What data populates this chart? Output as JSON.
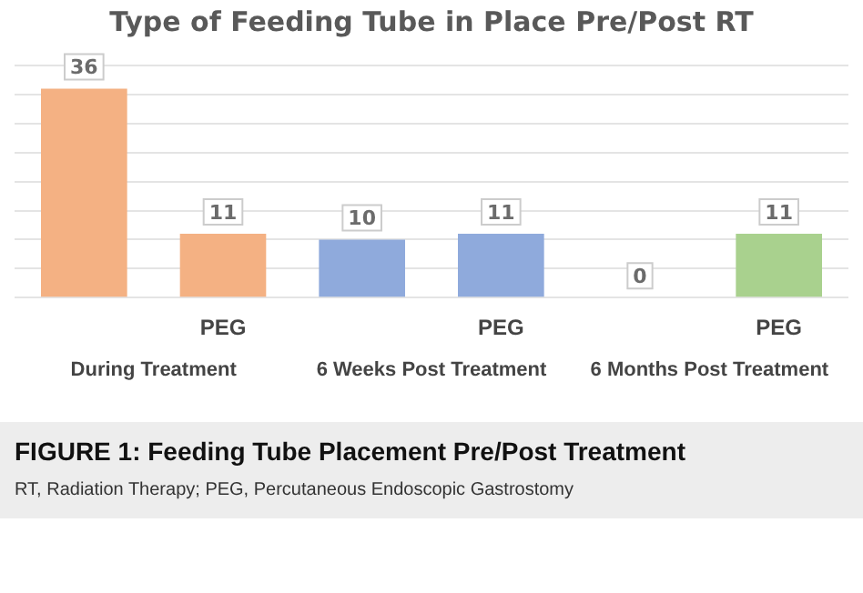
{
  "chart_data": {
    "type": "bar",
    "title": "Type of Feeding Tube in Place Pre/Post RT",
    "categories": [
      null,
      "PEG",
      null,
      "PEG",
      null,
      "PEG"
    ],
    "values": [
      36,
      11,
      10,
      11,
      0,
      11
    ],
    "colors": [
      "#f4b183",
      "#f4b183",
      "#8faadc",
      "#8faadc",
      "#a9d18e",
      "#a9d18e"
    ],
    "ylim": [
      0,
      40
    ],
    "yticks": [
      {
        "value": 0,
        "label": null
      },
      {
        "value": 5,
        "label": null
      },
      {
        "value": 10,
        "label": null
      },
      {
        "value": 15,
        "label": null
      },
      {
        "value": 20,
        "label": null
      },
      {
        "value": 25,
        "label": null
      },
      {
        "value": 30,
        "label": null
      },
      {
        "value": 35,
        "label": null
      },
      {
        "value": 40,
        "label": null
      }
    ],
    "tick_labels": "x",
    "grid": "y",
    "legend": false,
    "data_labels": true,
    "annotations": [
      "During Treatment",
      "6 Weeks Post Treatment",
      "6 Months Post Treatment",
      "FIGURE 1: Feeding Tube Placement Pre/Post Treatment",
      "RT, Radiation Therapy; PEG, Percutaneous Endoscopic Gastrostomy"
    ]
  }
}
